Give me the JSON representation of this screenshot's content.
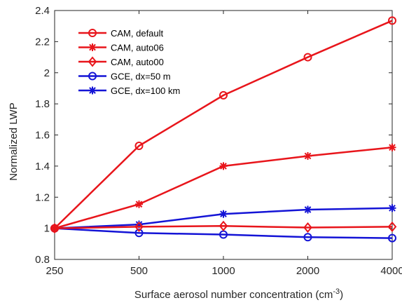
{
  "chart_data": {
    "type": "line",
    "categories": [
      "250",
      "500",
      "1000",
      "2000",
      "4000"
    ],
    "title": "",
    "xlabel": "Surface aerosol number concentration (cm",
    "xlabel_exponent": "-3",
    "xlabel_close": ")",
    "ylabel": "Normalized LWP",
    "ylim": [
      0.8,
      2.4
    ],
    "yticks": [
      "0.8",
      "1",
      "1.2",
      "1.4",
      "1.6",
      "1.8",
      "2",
      "2.2",
      "2.4"
    ],
    "grid": false,
    "legend_position": "top-left",
    "series": [
      {
        "name": "CAM, default",
        "color": "#e8151b",
        "marker": "circle",
        "values": [
          1.0,
          1.53,
          1.855,
          2.1,
          2.335
        ]
      },
      {
        "name": "CAM, auto06",
        "color": "#e8151b",
        "marker": "asterisk",
        "values": [
          1.0,
          1.155,
          1.4,
          1.465,
          1.52
        ]
      },
      {
        "name": "CAM, auto00",
        "color": "#e8151b",
        "marker": "diamond",
        "values": [
          1.0,
          1.01,
          1.015,
          1.005,
          1.01
        ]
      },
      {
        "name": "GCE, dx=50 m",
        "color": "#1414d6",
        "marker": "circle",
        "values": [
          1.0,
          0.97,
          0.96,
          0.943,
          0.937
        ]
      },
      {
        "name": "GCE, dx=100 km",
        "color": "#1414d6",
        "marker": "asterisk",
        "values": [
          1.0,
          1.025,
          1.092,
          1.12,
          1.13
        ]
      }
    ]
  }
}
